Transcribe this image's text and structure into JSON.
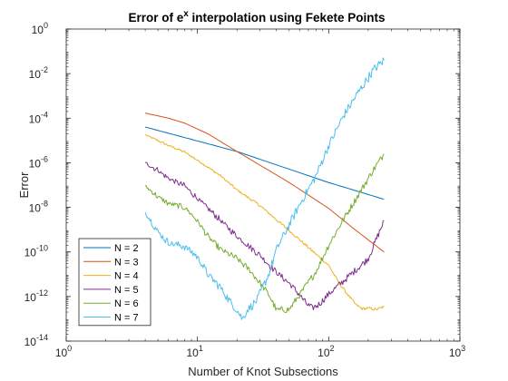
{
  "chart_data": {
    "type": "line",
    "title_main": "Error of e",
    "title_sup": "x",
    "title_rest": " interpolation using Fekete Points",
    "xlabel": "Number of Knot Subsections",
    "ylabel": "Error",
    "xscale": "log",
    "yscale": "log",
    "xlim": [
      1,
      1000
    ],
    "ylim": [
      1e-14,
      1
    ],
    "x_ticks": [
      {
        "value": 1,
        "base": "10",
        "exp": "0"
      },
      {
        "value": 10,
        "base": "10",
        "exp": "1"
      },
      {
        "value": 100,
        "base": "10",
        "exp": "2"
      },
      {
        "value": 1000,
        "base": "10",
        "exp": "3"
      }
    ],
    "y_ticks": [
      {
        "value": 1,
        "base": "10",
        "exp": "0"
      },
      {
        "value": 0.01,
        "base": "10",
        "exp": "-2"
      },
      {
        "value": 0.0001,
        "base": "10",
        "exp": "-4"
      },
      {
        "value": 1e-06,
        "base": "10",
        "exp": "-6"
      },
      {
        "value": 1e-08,
        "base": "10",
        "exp": "-8"
      },
      {
        "value": 1e-10,
        "base": "10",
        "exp": "-10"
      },
      {
        "value": 1e-12,
        "base": "10",
        "exp": "-12"
      },
      {
        "value": 1e-14,
        "base": "10",
        "exp": "-14"
      }
    ],
    "grid": false,
    "box": true,
    "legend_position": "bottom-left",
    "series": [
      {
        "name": "N = 2",
        "color": "#0072BD",
        "noise": 0,
        "points": [
          [
            4,
            4e-05
          ],
          [
            20,
            3.2e-06
          ],
          [
            100,
            1.3e-07
          ],
          [
            264,
            2.3e-08
          ]
        ]
      },
      {
        "name": "N = 3",
        "color": "#D95319",
        "noise": 0,
        "points": [
          [
            4,
            0.00017
          ],
          [
            6,
            0.0001
          ],
          [
            8,
            6e-05
          ],
          [
            12,
            2e-05
          ],
          [
            20,
            3.2e-06
          ],
          [
            50,
            1.3e-07
          ],
          [
            100,
            9e-09
          ],
          [
            150,
            1.3e-09
          ],
          [
            200,
            3.5e-10
          ],
          [
            264,
            1e-10
          ]
        ]
      },
      {
        "name": "N = 4",
        "color": "#EDB120",
        "noise": 0.06,
        "points": [
          [
            4,
            1.8e-05
          ],
          [
            6,
            6e-06
          ],
          [
            8,
            3e-06
          ],
          [
            10,
            1.3e-06
          ],
          [
            15,
            2.6e-07
          ],
          [
            20,
            6e-08
          ],
          [
            30,
            1.2e-08
          ],
          [
            50,
            9e-10
          ],
          [
            80,
            8e-11
          ],
          [
            100,
            2.5e-11
          ],
          [
            120,
            4e-12
          ],
          [
            140,
            1.2e-12
          ],
          [
            160,
            4.5e-13
          ],
          [
            180,
            2.8e-13
          ],
          [
            200,
            3e-13
          ],
          [
            230,
            2.6e-13
          ],
          [
            264,
            3.5e-13
          ]
        ]
      },
      {
        "name": "N = 5",
        "color": "#7E2F8E",
        "noise": 0.15,
        "points": [
          [
            4,
            1e-06
          ],
          [
            5,
            4.5e-07
          ],
          [
            6,
            2e-07
          ],
          [
            8,
            9e-08
          ],
          [
            10,
            2.5e-08
          ],
          [
            15,
            2.6e-09
          ],
          [
            20,
            5e-10
          ],
          [
            30,
            7e-11
          ],
          [
            40,
            1.2e-11
          ],
          [
            50,
            4e-12
          ],
          [
            60,
            1.2e-12
          ],
          [
            68,
            4.5e-13
          ],
          [
            75,
            3e-13
          ],
          [
            85,
            4.5e-13
          ],
          [
            100,
            1.3e-12
          ],
          [
            130,
            5e-12
          ],
          [
            160,
            1.5e-11
          ],
          [
            200,
            5e-11
          ],
          [
            264,
            2.5e-09
          ]
        ]
      },
      {
        "name": "N = 6",
        "color": "#77AC30",
        "noise": 0.15,
        "points": [
          [
            4,
            9e-08
          ],
          [
            5,
            3e-08
          ],
          [
            6,
            1.5e-08
          ],
          [
            8,
            1e-08
          ],
          [
            10,
            2.5e-09
          ],
          [
            12,
            5e-10
          ],
          [
            15,
            1.3e-10
          ],
          [
            20,
            5e-11
          ],
          [
            25,
            1.5e-11
          ],
          [
            30,
            4e-12
          ],
          [
            35,
            1.2e-12
          ],
          [
            40,
            2.5e-13
          ],
          [
            50,
            2.6e-13
          ],
          [
            60,
            1.2e-12
          ],
          [
            80,
            1.3e-11
          ],
          [
            100,
            2e-10
          ],
          [
            130,
            3e-09
          ],
          [
            170,
            4e-08
          ],
          [
            220,
            5e-07
          ],
          [
            264,
            2.5e-06
          ]
        ]
      },
      {
        "name": "N = 7",
        "color": "#4DBEEE",
        "noise": 0.2,
        "points": [
          [
            4,
            6e-09
          ],
          [
            5,
            8e-10
          ],
          [
            6,
            2.5e-10
          ],
          [
            8,
            1.8e-10
          ],
          [
            10,
            6e-11
          ],
          [
            12,
            1e-11
          ],
          [
            15,
            2.5e-12
          ],
          [
            18,
            5e-13
          ],
          [
            20,
            2.5e-13
          ],
          [
            22,
            1e-13
          ],
          [
            24,
            2.5e-13
          ],
          [
            28,
            6e-13
          ],
          [
            35,
            1e-11
          ],
          [
            40,
            1.3e-10
          ],
          [
            60,
            1.3e-08
          ],
          [
            80,
            2.6e-07
          ],
          [
            100,
            6e-06
          ],
          [
            130,
            0.00013
          ],
          [
            170,
            0.0016
          ],
          [
            220,
            0.015
          ],
          [
            264,
            0.04
          ]
        ]
      }
    ]
  }
}
